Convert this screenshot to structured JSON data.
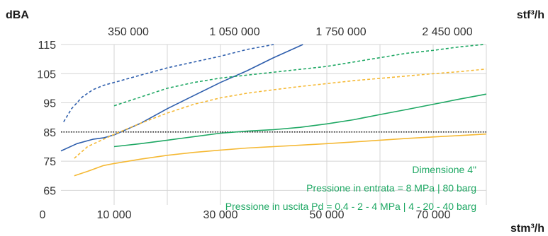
{
  "chart_data": {
    "type": "line",
    "ylabel": "dBA",
    "xlabel": "stm³/h",
    "x2label": "stf³/h",
    "xlim": [
      0,
      80000
    ],
    "ylim": [
      60,
      115
    ],
    "y_ticks": [
      115,
      105,
      95,
      85,
      75,
      65
    ],
    "x_ticks": [
      {
        "value": 0,
        "label": "0"
      },
      {
        "value": 10000,
        "label": "10 000"
      },
      {
        "value": 30000,
        "label": "30 000"
      },
      {
        "value": 50000,
        "label": "50 000"
      },
      {
        "value": 70000,
        "label": "70 000"
      }
    ],
    "x2_ticks": [
      {
        "value": 10000,
        "label": "350 000"
      },
      {
        "value": 30000,
        "label": "1 050 000"
      },
      {
        "value": 50000,
        "label": "1 750 000"
      },
      {
        "value": 70000,
        "label": "2 450 000"
      }
    ],
    "grid": true,
    "reference_line": {
      "y": 85,
      "style": "dotted",
      "color": "#000000"
    },
    "annotations": [
      "Dimensione 4\"",
      "Pressione in entrata = 8 MPa | 80 barg",
      "Pressione in uscita Pd = 0.4 - 2 - 4 MPa | 4 - 20 - 40 barg"
    ],
    "series": [
      {
        "color": "#2f5fad",
        "style": "dashed",
        "points": [
          [
            500,
            88.5
          ],
          [
            2000,
            93
          ],
          [
            4000,
            97
          ],
          [
            6000,
            99.5
          ],
          [
            8000,
            101
          ],
          [
            10000,
            102
          ],
          [
            15000,
            104.5
          ],
          [
            20000,
            107
          ],
          [
            25000,
            109
          ],
          [
            30000,
            111
          ],
          [
            35000,
            113.3
          ],
          [
            40000,
            115
          ]
        ]
      },
      {
        "color": "#2f5fad",
        "style": "solid",
        "points": [
          [
            0,
            78.5
          ],
          [
            3000,
            81
          ],
          [
            6000,
            82.5
          ],
          [
            8000,
            83
          ],
          [
            10000,
            84
          ],
          [
            15000,
            88
          ],
          [
            20000,
            93
          ],
          [
            25000,
            97.5
          ],
          [
            30000,
            102
          ],
          [
            35000,
            106
          ],
          [
            40000,
            110.5
          ],
          [
            45500,
            115
          ]
        ]
      },
      {
        "color": "#1fa864",
        "style": "dashed",
        "points": [
          [
            10000,
            94
          ],
          [
            15000,
            97
          ],
          [
            20000,
            100
          ],
          [
            25000,
            102
          ],
          [
            30000,
            103.5
          ],
          [
            35000,
            104.5
          ],
          [
            40000,
            105.5
          ],
          [
            45000,
            106.5
          ],
          [
            50000,
            107.5
          ],
          [
            55000,
            109
          ],
          [
            60000,
            110.5
          ],
          [
            65000,
            112
          ],
          [
            70000,
            113
          ],
          [
            75000,
            114.2
          ],
          [
            79500,
            115
          ]
        ]
      },
      {
        "color": "#1fa864",
        "style": "solid",
        "points": [
          [
            10000,
            80
          ],
          [
            15000,
            81
          ],
          [
            20000,
            82.2
          ],
          [
            25000,
            83.4
          ],
          [
            30000,
            84.6
          ],
          [
            35000,
            85.3
          ],
          [
            40000,
            85.8
          ],
          [
            45000,
            86.6
          ],
          [
            50000,
            87.8
          ],
          [
            55000,
            89.2
          ],
          [
            60000,
            91
          ],
          [
            65000,
            92.7
          ],
          [
            70000,
            94.5
          ],
          [
            75000,
            96.3
          ],
          [
            80000,
            98
          ]
        ]
      },
      {
        "color": "#f5b935",
        "style": "dashed",
        "points": [
          [
            2500,
            76
          ],
          [
            5000,
            80
          ],
          [
            8000,
            82.5
          ],
          [
            10000,
            84.2
          ],
          [
            15000,
            88
          ],
          [
            20000,
            91.5
          ],
          [
            25000,
            94.5
          ],
          [
            30000,
            96.7
          ],
          [
            35000,
            98.3
          ],
          [
            40000,
            99.5
          ],
          [
            45000,
            100.6
          ],
          [
            50000,
            101.6
          ],
          [
            55000,
            102.6
          ],
          [
            60000,
            103.4
          ],
          [
            65000,
            104.2
          ],
          [
            70000,
            105
          ],
          [
            75000,
            105.7
          ],
          [
            80000,
            106.6
          ]
        ]
      },
      {
        "color": "#f5b935",
        "style": "solid",
        "points": [
          [
            2500,
            70
          ],
          [
            5000,
            71.5
          ],
          [
            8000,
            73.5
          ],
          [
            10000,
            74.2
          ],
          [
            15000,
            75.7
          ],
          [
            20000,
            77
          ],
          [
            25000,
            78
          ],
          [
            30000,
            78.8
          ],
          [
            35000,
            79.5
          ],
          [
            40000,
            80
          ],
          [
            45000,
            80.5
          ],
          [
            50000,
            81
          ],
          [
            55000,
            81.6
          ],
          [
            60000,
            82.2
          ],
          [
            65000,
            82.8
          ],
          [
            70000,
            83.3
          ],
          [
            75000,
            83.8
          ],
          [
            80000,
            84.3
          ]
        ]
      }
    ]
  }
}
